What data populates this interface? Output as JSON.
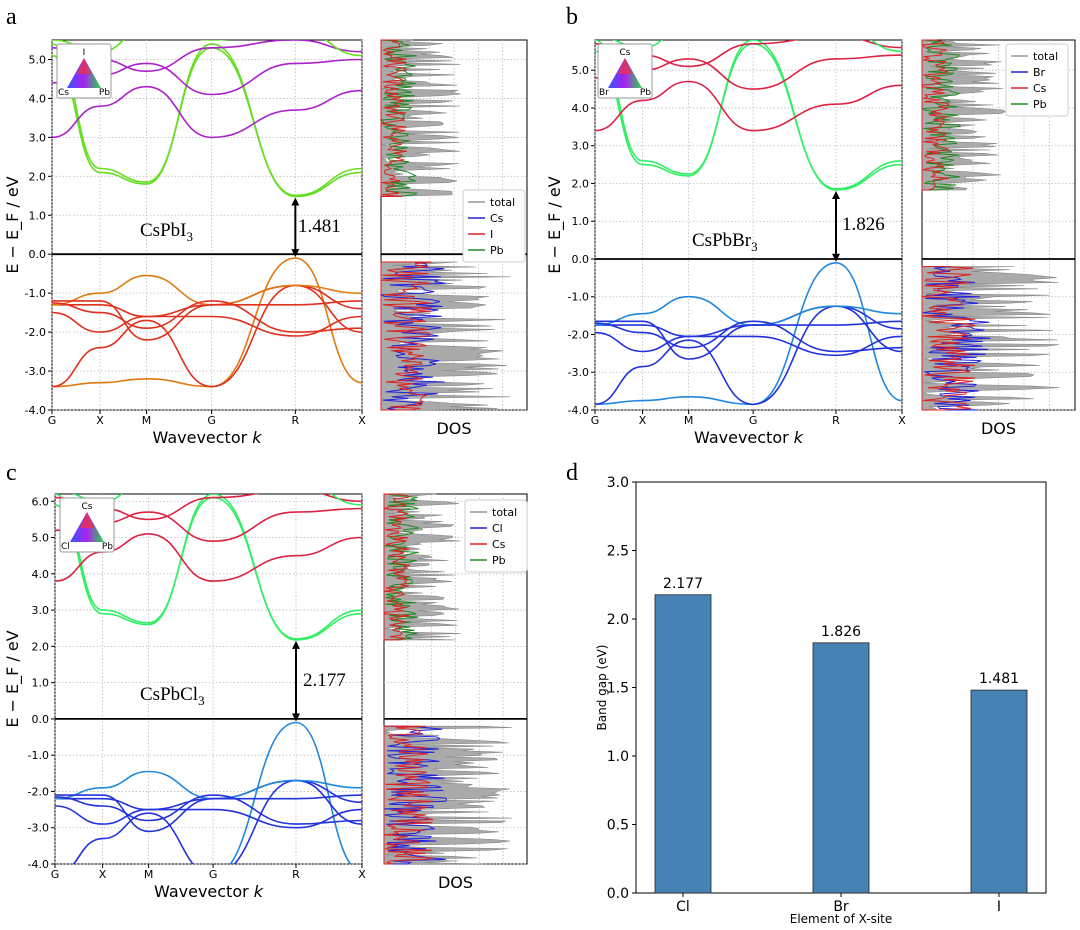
{
  "panels": [
    {
      "letter": "a",
      "compound": "CsPbI",
      "compound_sub": "3",
      "gap": 1.481,
      "gap_label": "1.481",
      "xlabel": "Wavevector",
      "xlabel_k": "k",
      "ylabel": "E − E_F / eV",
      "kpoints": [
        "G",
        "X",
        "M",
        "G",
        "R",
        "X"
      ],
      "ylim": [
        -4.0,
        5.5
      ],
      "yticks": [
        "-4.0",
        "-3.0",
        "-2.0",
        "-1.0",
        "0.0",
        "1.0",
        "2.0",
        "3.0",
        "4.0",
        "5.0"
      ],
      "triangle": {
        "top": "I",
        "left": "Cs",
        "right": "Pb"
      },
      "dos_label": "DOS",
      "legend": [
        "total",
        "Cs",
        "I",
        "Pb"
      ],
      "legend_colors": [
        "#999999",
        "#2222dd",
        "#dd2222",
        "#228822"
      ],
      "vb_color": "#e0301e",
      "vb_color2": "#e07a10",
      "cb_color": "#66dd22",
      "cb_high": "#aa22cc"
    },
    {
      "letter": "b",
      "compound": "CsPbBr",
      "compound_sub": "3",
      "gap": 1.826,
      "gap_label": "1.826",
      "xlabel": "Wavevector",
      "xlabel_k": "k",
      "ylabel": "E − E_F / eV",
      "kpoints": [
        "G",
        "X",
        "M",
        "G",
        "R",
        "X"
      ],
      "ylim": [
        -4.0,
        5.8
      ],
      "yticks": [
        "-4.0",
        "-3.0",
        "-2.0",
        "-1.0",
        "0.0",
        "1.0",
        "2.0",
        "3.0",
        "4.0",
        "5.0"
      ],
      "triangle": {
        "top": "Cs",
        "left": "Br",
        "right": "Pb"
      },
      "dos_label": "DOS",
      "legend": [
        "total",
        "Br",
        "Cs",
        "Pb"
      ],
      "legend_colors": [
        "#999999",
        "#2222dd",
        "#dd2222",
        "#228822"
      ],
      "vb_color": "#2233dd",
      "vb_color2": "#2288dd",
      "cb_color": "#33ee66",
      "cb_high": "#dd2244"
    },
    {
      "letter": "c",
      "compound": "CsPbCl",
      "compound_sub": "3",
      "gap": 2.177,
      "gap_label": "2.177",
      "xlabel": "Wavevector",
      "xlabel_k": "k",
      "ylabel": "E − E_F / eV",
      "kpoints": [
        "G",
        "X",
        "M",
        "G",
        "R",
        "X"
      ],
      "ylim": [
        -4.0,
        6.2
      ],
      "yticks": [
        "-4.0",
        "-3.0",
        "-2.0",
        "-1.0",
        "0.0",
        "1.0",
        "2.0",
        "3.0",
        "4.0",
        "5.0",
        "6.0"
      ],
      "triangle": {
        "top": "Cs",
        "left": "Cl",
        "right": "Pb"
      },
      "dos_label": "DOS",
      "legend": [
        "total",
        "Cl",
        "Cs",
        "Pb"
      ],
      "legend_colors": [
        "#999999",
        "#2222dd",
        "#dd2222",
        "#228822"
      ],
      "vb_color": "#2233dd",
      "vb_color2": "#2288dd",
      "cb_color": "#33ee66",
      "cb_high": "#dd2244"
    }
  ],
  "chart_data": {
    "type": "bar",
    "letter": "d",
    "categories": [
      "Cl",
      "Br",
      "I"
    ],
    "values": [
      2.177,
      1.826,
      1.481
    ],
    "value_labels": [
      "2.177",
      "1.826",
      "1.481"
    ],
    "xlabel": "Element of X-site",
    "ylabel": "Band gap (eV)",
    "ylim": [
      0.0,
      3.0
    ],
    "yticks": [
      "0.0",
      "0.5",
      "1.0",
      "1.5",
      "2.0",
      "2.5",
      "3.0"
    ],
    "bar_color": "#4682b4"
  }
}
